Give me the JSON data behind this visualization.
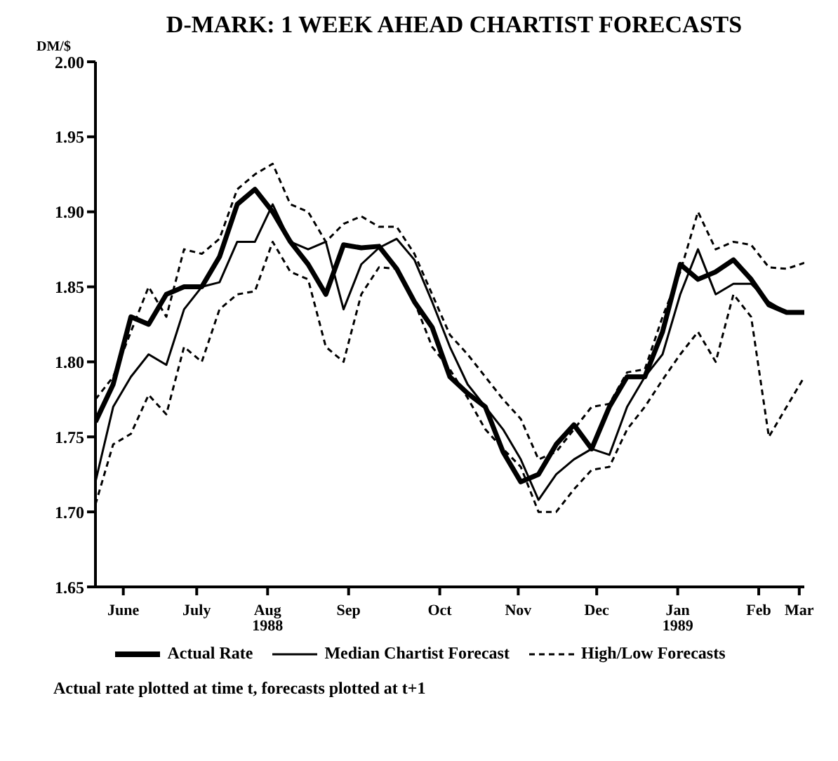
{
  "chart_data": {
    "type": "line",
    "title": "D-MARK: 1 WEEK AHEAD CHARTIST FORECASTS",
    "ylabel": "DM/$",
    "x": [
      "1988-05-27",
      "1988-06-03",
      "1988-06-10",
      "1988-06-17",
      "1988-06-24",
      "1988-07-01",
      "1988-07-08",
      "1988-07-15",
      "1988-07-22",
      "1988-07-29",
      "1988-08-05",
      "1988-08-12",
      "1988-08-19",
      "1988-08-26",
      "1988-09-02",
      "1988-09-09",
      "1988-09-16",
      "1988-09-23",
      "1988-09-30",
      "1988-10-07",
      "1988-10-14",
      "1988-10-21",
      "1988-10-28",
      "1988-11-04",
      "1988-11-11",
      "1988-11-18",
      "1988-11-25",
      "1988-12-02",
      "1988-12-09",
      "1988-12-16",
      "1988-12-23",
      "1988-12-30",
      "1989-01-06",
      "1989-01-13",
      "1989-01-20",
      "1989-01-27",
      "1989-02-03",
      "1989-02-10",
      "1989-02-17",
      "1989-02-24",
      "1989-03-03"
    ],
    "series": [
      {
        "name": "Actual Rate",
        "color": "#000000",
        "line_style": "solid",
        "values": [
          1.76,
          1.785,
          1.83,
          1.825,
          1.845,
          1.85,
          1.85,
          1.87,
          1.905,
          1.915,
          1.9,
          1.88,
          1.865,
          1.845,
          1.878,
          1.876,
          1.877,
          1.862,
          1.84,
          1.823,
          1.79,
          1.779,
          1.77,
          1.74,
          1.72,
          1.725,
          1.745,
          1.758,
          1.742,
          1.77,
          1.79,
          1.79,
          1.82,
          1.865,
          1.855,
          1.86,
          1.868,
          1.855,
          1.838,
          1.833,
          1.833
        ]
      },
      {
        "name": "Median Chartist Forecast",
        "color": "#000000",
        "line_style": "solid",
        "values": [
          1.72,
          1.77,
          1.79,
          1.805,
          1.798,
          1.835,
          1.85,
          1.853,
          1.88,
          1.88,
          1.905,
          1.88,
          1.875,
          1.88,
          1.835,
          1.865,
          1.876,
          1.882,
          1.868,
          1.84,
          1.81,
          1.785,
          1.77,
          1.755,
          1.735,
          1.708,
          1.725,
          1.735,
          1.742,
          1.738,
          1.77,
          1.79,
          1.805,
          1.845,
          1.875,
          1.845,
          1.852,
          1.852,
          1.84,
          1.833,
          1.833
        ]
      },
      {
        "name": "High/Low Forecasts",
        "color": "#000000",
        "line_style": "dashed",
        "values": [
          1.775,
          1.79,
          1.82,
          1.85,
          1.83,
          1.875,
          1.872,
          1.882,
          1.915,
          1.925,
          1.932,
          1.905,
          1.9,
          1.88,
          1.892,
          1.897,
          1.89,
          1.89,
          1.872,
          1.845,
          1.818,
          1.805,
          1.79,
          1.775,
          1.762,
          1.735,
          1.74,
          1.755,
          1.77,
          1.772,
          1.793,
          1.795,
          1.83,
          1.86,
          1.9,
          1.875,
          1.88,
          1.878,
          1.863,
          1.862,
          1.866
        ]
      },
      {
        "color": "#000000",
        "line_style": "dashed",
        "values": [
          1.705,
          1.745,
          1.752,
          1.778,
          1.765,
          1.81,
          1.8,
          1.835,
          1.845,
          1.847,
          1.88,
          1.86,
          1.855,
          1.81,
          1.8,
          1.845,
          1.863,
          1.862,
          1.84,
          1.81,
          1.795,
          1.776,
          1.755,
          1.742,
          1.73,
          1.7,
          1.7,
          1.715,
          1.728,
          1.73,
          1.755,
          1.77,
          1.788,
          1.805,
          1.82,
          1.8,
          1.845,
          1.83,
          1.75,
          1.77,
          1.79
        ]
      }
    ],
    "xlim": [
      "1988-05-27",
      "1989-03-03"
    ],
    "xticks": [
      {
        "value": "1988-06-07",
        "label": "June"
      },
      {
        "value": "1988-07-06",
        "label": "July"
      },
      {
        "value": "1988-08-03",
        "label": "Aug\n1988"
      },
      {
        "value": "1988-09-04",
        "label": "Sep"
      },
      {
        "value": "1988-10-10",
        "label": "Oct"
      },
      {
        "value": "1988-11-10",
        "label": "Nov"
      },
      {
        "value": "1988-12-11",
        "label": "Dec"
      },
      {
        "value": "1989-01-12",
        "label": "Jan\n1989"
      },
      {
        "value": "1989-02-13",
        "label": "Feb"
      },
      {
        "value": "1989-03-01",
        "label": "Mar"
      }
    ],
    "ylim": [
      1.65,
      2.0
    ],
    "yticks": [
      1.65,
      {
        "value": 1.7,
        "label": "1.70"
      },
      1.75,
      {
        "value": 1.8,
        "label": "1.80"
      },
      1.85,
      {
        "value": 1.9,
        "label": "1.90"
      },
      1.95,
      {
        "value": 2.0,
        "label": "2.00"
      }
    ],
    "grid": false,
    "legend": "bottom",
    "marker": "none",
    "annotations": [
      "Actual rate plotted at time t, forecasts plotted at t+1"
    ]
  }
}
